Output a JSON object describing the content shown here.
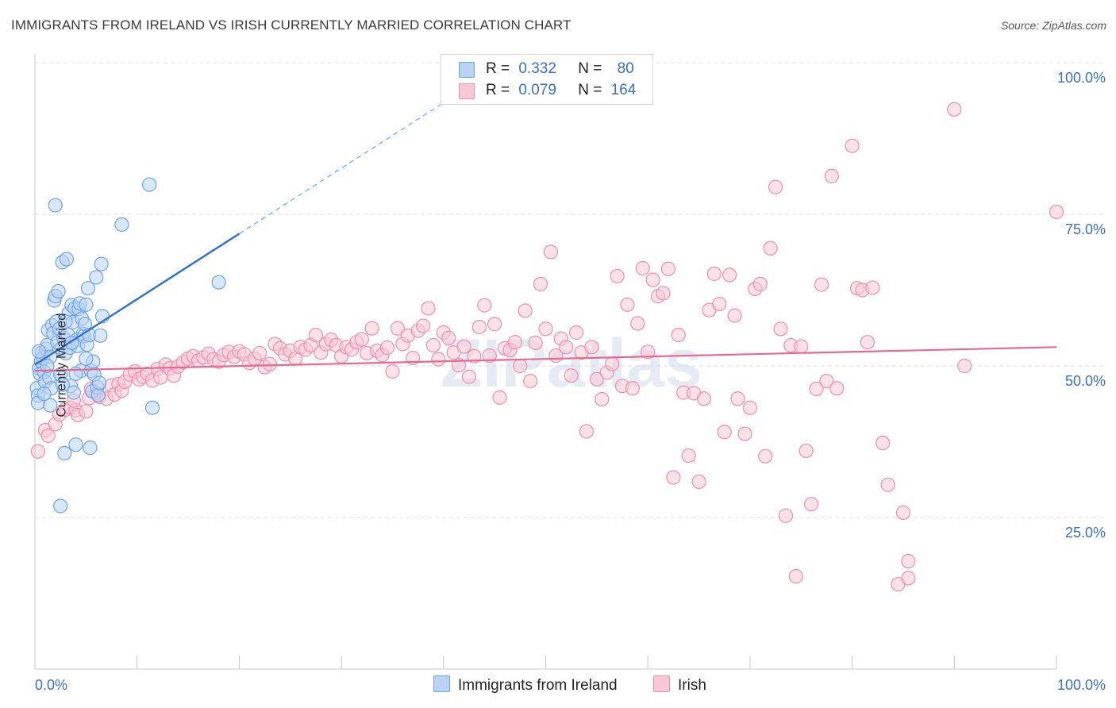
{
  "title": "IMMIGRANTS FROM IRELAND VS IRISH CURRENTLY MARRIED CORRELATION CHART",
  "source": "Source: ZipAtlas.com",
  "watermark": "ZIPatlas",
  "colors": {
    "blue": "#6fa4e2",
    "blue_fill": "#b9d3f5",
    "blue_line": "#2f6fce",
    "pink": "#ee8fae",
    "pink_fill": "#f8c8d6",
    "pink_line": "#e56a92",
    "axis_label": "#3b6fc4",
    "grid": "#dcdcdc"
  },
  "legend": {
    "rows": [
      {
        "r_label": "R =",
        "r_value": "0.332",
        "n_label": "N =",
        "n_value": "80"
      },
      {
        "r_label": "R =",
        "r_value": "0.079",
        "n_label": "N =",
        "n_value": "164"
      }
    ]
  },
  "series_legend": [
    "Immigrants from Ireland",
    "Irish"
  ],
  "chart_data": {
    "type": "scatter",
    "title": "IMMIGRANTS FROM IRELAND VS IRISH CURRENTLY MARRIED CORRELATION CHART",
    "xlabel": "",
    "ylabel": "Currently Married",
    "xlim": [
      0,
      100
    ],
    "ylim": [
      0,
      100
    ],
    "x_tick_labels": [
      "0.0%",
      "100.0%"
    ],
    "y_tick_labels": [
      "100.0%",
      "75.0%",
      "50.0%",
      "25.0%"
    ],
    "y_ticks": [
      100,
      75,
      50,
      25
    ],
    "grid": true,
    "series": [
      {
        "name": "Immigrants from Ireland",
        "R": 0.332,
        "N": 80,
        "trend": {
          "x0": 0,
          "y0": 50.2,
          "x1": 20,
          "y1": 71.8,
          "dashed_to_x": 42
        },
        "points": [
          [
            0.2,
            46.3
          ],
          [
            0.3,
            45.1
          ],
          [
            0.4,
            49.6
          ],
          [
            0.5,
            48.7
          ],
          [
            0.6,
            50.8
          ],
          [
            0.7,
            52.2
          ],
          [
            0.8,
            51.3
          ],
          [
            0.9,
            49.0
          ],
          [
            1.0,
            47.4
          ],
          [
            1.1,
            52.8
          ],
          [
            1.2,
            53.4
          ],
          [
            1.3,
            55.9
          ],
          [
            1.4,
            48.1
          ],
          [
            1.5,
            51.5
          ],
          [
            1.6,
            46.3
          ],
          [
            1.7,
            56.7
          ],
          [
            1.8,
            55.4
          ],
          [
            1.9,
            60.8
          ],
          [
            2.0,
            61.5
          ],
          [
            2.1,
            57.3
          ],
          [
            2.2,
            53.9
          ],
          [
            2.3,
            62.3
          ],
          [
            2.4,
            56.1
          ],
          [
            2.5,
            48.6
          ],
          [
            2.6,
            52.9
          ],
          [
            2.7,
            67.1
          ],
          [
            2.8,
            54.6
          ],
          [
            2.9,
            35.6
          ],
          [
            3.0,
            52.1
          ],
          [
            3.1,
            67.6
          ],
          [
            3.2,
            55.2
          ],
          [
            3.3,
            58.7
          ],
          [
            3.4,
            53.0
          ],
          [
            3.5,
            46.7
          ],
          [
            3.6,
            60.0
          ],
          [
            3.7,
            57.2
          ],
          [
            3.8,
            45.6
          ],
          [
            3.9,
            59.5
          ],
          [
            4.0,
            37.0
          ],
          [
            4.1,
            54.3
          ],
          [
            4.2,
            53.3
          ],
          [
            4.3,
            59.4
          ],
          [
            4.4,
            60.3
          ],
          [
            4.5,
            49.2
          ],
          [
            4.6,
            57.8
          ],
          [
            4.7,
            55.3
          ],
          [
            4.8,
            54.9
          ],
          [
            4.9,
            56.9
          ],
          [
            5.0,
            60.1
          ],
          [
            5.1,
            53.5
          ],
          [
            5.2,
            62.8
          ],
          [
            5.3,
            55.1
          ],
          [
            5.4,
            36.5
          ],
          [
            5.5,
            49.2
          ],
          [
            5.6,
            45.8
          ],
          [
            5.7,
            50.7
          ],
          [
            5.8,
            48.6
          ],
          [
            6.0,
            64.6
          ],
          [
            6.1,
            46.5
          ],
          [
            6.2,
            45.2
          ],
          [
            6.3,
            47.2
          ],
          [
            6.4,
            55.0
          ],
          [
            6.5,
            66.8
          ],
          [
            6.6,
            58.2
          ],
          [
            2.5,
            26.9
          ],
          [
            2.0,
            76.5
          ],
          [
            8.5,
            73.3
          ],
          [
            11.5,
            43.1
          ],
          [
            11.2,
            79.9
          ],
          [
            18.0,
            63.8
          ],
          [
            0.3,
            43.9
          ],
          [
            0.4,
            52.4
          ],
          [
            0.9,
            45.4
          ],
          [
            1.2,
            50.0
          ],
          [
            3.6,
            53.8
          ],
          [
            4.0,
            48.7
          ],
          [
            2.7,
            46.9
          ],
          [
            5.0,
            51.2
          ],
          [
            3.0,
            57.3
          ],
          [
            1.5,
            43.5
          ]
        ]
      },
      {
        "name": "Irish",
        "R": 0.079,
        "N": 164,
        "trend": {
          "x0": 0,
          "y0": 49.2,
          "x1": 100,
          "y1": 53.1
        },
        "points": [
          [
            0.3,
            35.9
          ],
          [
            1.0,
            39.4
          ],
          [
            1.3,
            38.5
          ],
          [
            2.0,
            40.4
          ],
          [
            2.4,
            42.0
          ],
          [
            3.0,
            42.8
          ],
          [
            3.5,
            43.1
          ],
          [
            4.0,
            42.7
          ],
          [
            4.2,
            41.9
          ],
          [
            5.0,
            42.5
          ],
          [
            5.3,
            44.7
          ],
          [
            5.5,
            46.2
          ],
          [
            6.0,
            45.5
          ],
          [
            6.3,
            44.9
          ],
          [
            7.0,
            44.6
          ],
          [
            7.5,
            46.8
          ],
          [
            7.8,
            45.3
          ],
          [
            8.2,
            47.0
          ],
          [
            8.5,
            45.9
          ],
          [
            8.8,
            47.4
          ],
          [
            9.3,
            48.6
          ],
          [
            9.8,
            49.1
          ],
          [
            10.2,
            47.8
          ],
          [
            10.6,
            48.2
          ],
          [
            11.0,
            48.7
          ],
          [
            11.5,
            47.6
          ],
          [
            12.0,
            49.5
          ],
          [
            12.3,
            48.1
          ],
          [
            12.8,
            50.2
          ],
          [
            13.2,
            49.6
          ],
          [
            13.6,
            48.4
          ],
          [
            14.0,
            49.9
          ],
          [
            14.5,
            50.6
          ],
          [
            15.0,
            51.2
          ],
          [
            15.5,
            51.6
          ],
          [
            16.0,
            50.9
          ],
          [
            16.5,
            51.4
          ],
          [
            17.0,
            52.0
          ],
          [
            17.5,
            51.1
          ],
          [
            18.0,
            50.7
          ],
          [
            18.5,
            51.8
          ],
          [
            19.0,
            52.3
          ],
          [
            19.5,
            51.5
          ],
          [
            20.0,
            52.4
          ],
          [
            20.5,
            51.9
          ],
          [
            21.0,
            50.5
          ],
          [
            21.5,
            51.2
          ],
          [
            22.0,
            52.1
          ],
          [
            22.5,
            49.8
          ],
          [
            23.0,
            50.3
          ],
          [
            23.5,
            53.6
          ],
          [
            24.0,
            52.9
          ],
          [
            24.5,
            51.9
          ],
          [
            25.0,
            52.5
          ],
          [
            25.5,
            51.2
          ],
          [
            26.0,
            53.1
          ],
          [
            26.5,
            52.7
          ],
          [
            27.0,
            53.4
          ],
          [
            27.5,
            55.1
          ],
          [
            28.0,
            52.2
          ],
          [
            28.5,
            53.6
          ],
          [
            29.0,
            54.3
          ],
          [
            29.5,
            53.4
          ],
          [
            30.0,
            51.6
          ],
          [
            30.5,
            53.1
          ],
          [
            31.0,
            52.7
          ],
          [
            31.5,
            53.9
          ],
          [
            32.0,
            54.4
          ],
          [
            32.5,
            52.1
          ],
          [
            33.0,
            56.2
          ],
          [
            33.5,
            52.5
          ],
          [
            34.0,
            51.8
          ],
          [
            34.5,
            53.0
          ],
          [
            35.0,
            49.1
          ],
          [
            35.5,
            56.2
          ],
          [
            36.0,
            53.6
          ],
          [
            36.5,
            55.0
          ],
          [
            37.0,
            51.3
          ],
          [
            37.5,
            55.8
          ],
          [
            38.0,
            56.6
          ],
          [
            38.5,
            59.5
          ],
          [
            39.0,
            53.4
          ],
          [
            39.5,
            51.1
          ],
          [
            40.0,
            55.5
          ],
          [
            40.5,
            54.6
          ],
          [
            41.0,
            52.2
          ],
          [
            41.5,
            50.1
          ],
          [
            42.0,
            53.2
          ],
          [
            42.5,
            48.2
          ],
          [
            43.0,
            51.6
          ],
          [
            43.5,
            56.4
          ],
          [
            44.0,
            60.0
          ],
          [
            44.5,
            51.7
          ],
          [
            45.0,
            56.9
          ],
          [
            45.5,
            44.8
          ],
          [
            46.0,
            52.9
          ],
          [
            46.5,
            52.6
          ],
          [
            47.0,
            53.9
          ],
          [
            47.5,
            50.0
          ],
          [
            48.0,
            59.1
          ],
          [
            48.5,
            47.5
          ],
          [
            49.0,
            53.8
          ],
          [
            49.5,
            63.5
          ],
          [
            50.0,
            56.1
          ],
          [
            50.5,
            68.8
          ],
          [
            51.0,
            51.7
          ],
          [
            51.5,
            54.5
          ],
          [
            52.0,
            53.1
          ],
          [
            52.5,
            48.4
          ],
          [
            53.0,
            55.5
          ],
          [
            53.5,
            52.2
          ],
          [
            54.0,
            39.2
          ],
          [
            54.5,
            53.1
          ],
          [
            55.0,
            47.8
          ],
          [
            55.5,
            44.5
          ],
          [
            56.0,
            48.9
          ],
          [
            56.5,
            50.3
          ],
          [
            57.0,
            64.8
          ],
          [
            57.5,
            46.7
          ],
          [
            58.0,
            60.1
          ],
          [
            58.5,
            46.3
          ],
          [
            59.0,
            57.0
          ],
          [
            59.5,
            66.1
          ],
          [
            60.0,
            52.3
          ],
          [
            60.5,
            64.2
          ],
          [
            61.0,
            61.5
          ],
          [
            61.5,
            62.0
          ],
          [
            62.0,
            66.0
          ],
          [
            62.5,
            31.6
          ],
          [
            63.0,
            55.1
          ],
          [
            63.5,
            45.6
          ],
          [
            64.0,
            35.2
          ],
          [
            64.5,
            45.5
          ],
          [
            65.0,
            30.9
          ],
          [
            65.5,
            44.6
          ],
          [
            66.0,
            59.2
          ],
          [
            66.5,
            65.2
          ],
          [
            67.0,
            60.2
          ],
          [
            67.5,
            39.1
          ],
          [
            68.0,
            65.0
          ],
          [
            68.5,
            58.3
          ],
          [
            68.8,
            44.6
          ],
          [
            69.5,
            38.8
          ],
          [
            70.0,
            43.1
          ],
          [
            70.5,
            62.7
          ],
          [
            71.0,
            63.5
          ],
          [
            71.5,
            35.1
          ],
          [
            72.0,
            69.4
          ],
          [
            72.5,
            79.5
          ],
          [
            73.0,
            56.1
          ],
          [
            73.5,
            25.3
          ],
          [
            74.0,
            53.4
          ],
          [
            74.5,
            15.3
          ],
          [
            75.0,
            53.2
          ],
          [
            75.5,
            36.0
          ],
          [
            76.0,
            27.2
          ],
          [
            76.5,
            46.2
          ],
          [
            77.0,
            63.4
          ],
          [
            77.5,
            47.5
          ],
          [
            78.0,
            81.3
          ],
          [
            78.5,
            46.3
          ],
          [
            80.0,
            86.3
          ],
          [
            80.5,
            62.8
          ],
          [
            81.0,
            62.5
          ],
          [
            81.5,
            53.9
          ],
          [
            82.0,
            62.9
          ],
          [
            83.0,
            37.3
          ],
          [
            83.5,
            30.4
          ],
          [
            85.0,
            25.8
          ],
          [
            85.5,
            17.8
          ],
          [
            84.5,
            14.0
          ],
          [
            85.5,
            15.0
          ],
          [
            90.0,
            92.3
          ],
          [
            91.0,
            50.0
          ],
          [
            100.0,
            75.4
          ],
          [
            3.8,
            44.3
          ]
        ]
      }
    ]
  }
}
